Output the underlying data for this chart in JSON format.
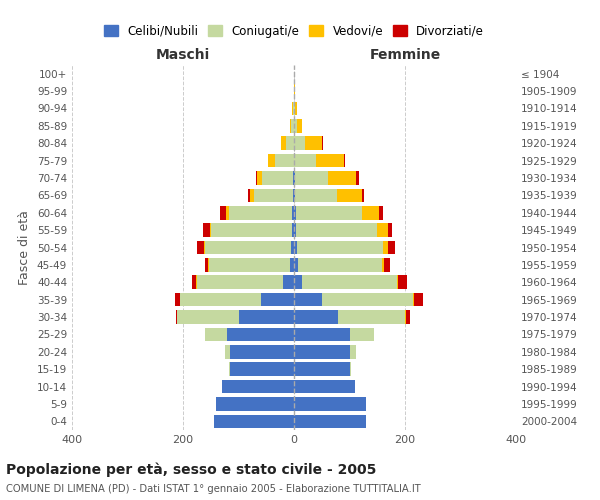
{
  "age_groups": [
    "0-4",
    "5-9",
    "10-14",
    "15-19",
    "20-24",
    "25-29",
    "30-34",
    "35-39",
    "40-44",
    "45-49",
    "50-54",
    "55-59",
    "60-64",
    "65-69",
    "70-74",
    "75-79",
    "80-84",
    "85-89",
    "90-94",
    "95-99",
    "100+"
  ],
  "birth_years": [
    "2000-2004",
    "1995-1999",
    "1990-1994",
    "1985-1989",
    "1980-1984",
    "1975-1979",
    "1970-1974",
    "1965-1969",
    "1960-1964",
    "1955-1959",
    "1950-1954",
    "1945-1949",
    "1940-1944",
    "1935-1939",
    "1930-1934",
    "1925-1929",
    "1920-1924",
    "1915-1919",
    "1910-1914",
    "1905-1909",
    "≤ 1904"
  ],
  "male": {
    "celibi": [
      145,
      140,
      130,
      115,
      115,
      120,
      100,
      60,
      20,
      8,
      5,
      4,
      3,
      2,
      2,
      0,
      0,
      0,
      0,
      0,
      0
    ],
    "coniugati": [
      0,
      0,
      0,
      3,
      10,
      40,
      110,
      145,
      155,
      145,
      155,
      145,
      115,
      70,
      55,
      35,
      15,
      5,
      2,
      0,
      0
    ],
    "vedovi": [
      0,
      0,
      0,
      0,
      0,
      0,
      0,
      1,
      1,
      2,
      2,
      3,
      5,
      8,
      10,
      12,
      8,
      3,
      1,
      0,
      0
    ],
    "divorziati": [
      0,
      0,
      0,
      0,
      0,
      0,
      3,
      8,
      8,
      5,
      12,
      12,
      10,
      2,
      2,
      0,
      0,
      0,
      0,
      0,
      0
    ]
  },
  "female": {
    "nubili": [
      130,
      130,
      110,
      100,
      100,
      100,
      80,
      50,
      15,
      8,
      5,
      4,
      3,
      2,
      2,
      0,
      0,
      0,
      0,
      0,
      0
    ],
    "coniugate": [
      0,
      0,
      0,
      3,
      12,
      45,
      120,
      165,
      170,
      150,
      155,
      145,
      120,
      75,
      60,
      40,
      20,
      5,
      2,
      0,
      0
    ],
    "vedove": [
      0,
      0,
      0,
      0,
      0,
      0,
      1,
      2,
      3,
      5,
      10,
      20,
      30,
      45,
      50,
      50,
      30,
      10,
      3,
      1,
      0
    ],
    "divorziate": [
      0,
      0,
      0,
      0,
      0,
      0,
      8,
      15,
      15,
      10,
      12,
      8,
      8,
      5,
      5,
      2,
      2,
      0,
      0,
      0,
      0
    ]
  },
  "colors": {
    "celibi": "#4472c4",
    "coniugati": "#c5d9a0",
    "vedovi": "#ffc000",
    "divorziati": "#cc0000"
  },
  "xlim": 400,
  "title": "Popolazione per età, sesso e stato civile - 2005",
  "subtitle": "COMUNE DI LIMENA (PD) - Dati ISTAT 1° gennaio 2005 - Elaborazione TUTTITALIA.IT",
  "ylabel_left": "Fasce di età",
  "xlabel_left": "Maschi",
  "xlabel_right": "Femmine",
  "background_color": "#ffffff",
  "grid_color": "#cccccc"
}
